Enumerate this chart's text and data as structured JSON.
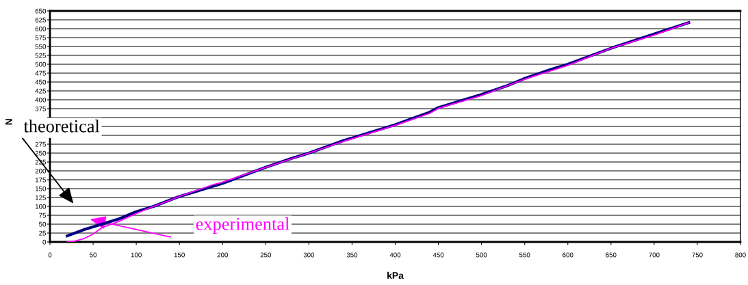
{
  "chart_data": {
    "type": "line",
    "xlabel": "kPa",
    "ylabel": "N",
    "xlim": [
      0,
      800
    ],
    "xticks": [
      0,
      50,
      100,
      150,
      200,
      250,
      300,
      350,
      400,
      450,
      500,
      550,
      600,
      650,
      700,
      750,
      800
    ],
    "ylim": [
      0,
      650
    ],
    "yticks": [
      0,
      25,
      50,
      75,
      100,
      125,
      150,
      175,
      200,
      225,
      250,
      275,
      300,
      {
        "value": 325,
        "label": null
      },
      {
        "value": 350,
        "label": null
      },
      375,
      400,
      425,
      450,
      475,
      500,
      525,
      550,
      575,
      600,
      625,
      650
    ],
    "grid": "y",
    "legend": false,
    "marker": "none",
    "line_style": "solid",
    "series": [
      {
        "color": "#000080",
        "x": [
          20,
          40,
          60,
          80,
          100,
          120,
          150,
          180,
          200,
          250,
          280,
          300,
          340,
          400,
          440,
          450,
          500,
          530,
          550,
          580,
          600,
          650,
          700,
          740
        ],
        "values": [
          17,
          35,
          50,
          65,
          85,
          100,
          128,
          150,
          165,
          210,
          235,
          250,
          285,
          330,
          365,
          378,
          415,
          440,
          460,
          485,
          500,
          545,
          585,
          617
        ]
      },
      {
        "color": "#ff00ff",
        "x": [
          20,
          30,
          40,
          50,
          60,
          80,
          100,
          120,
          140,
          150,
          190,
          200,
          250,
          300,
          340,
          400,
          440,
          450,
          500,
          550,
          600,
          650,
          700,
          740
        ],
        "values": [
          0,
          3,
          10,
          22,
          40,
          58,
          80,
          100,
          118,
          128,
          162,
          168,
          210,
          250,
          283,
          328,
          362,
          376,
          412,
          458,
          497,
          545,
          582,
          617
        ]
      }
    ],
    "annotations": [
      "theoretical",
      "experimental"
    ]
  }
}
